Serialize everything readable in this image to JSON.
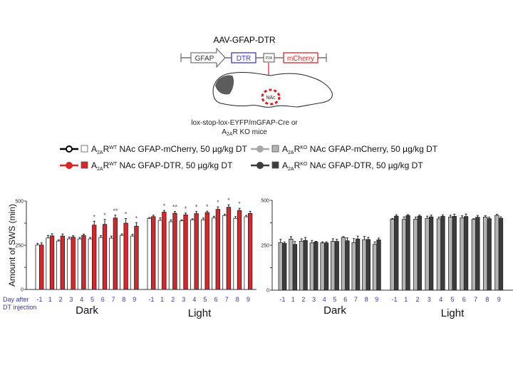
{
  "diagram": {
    "construct_title": "AAV-GFAP-DTR",
    "elements": [
      "GFAP",
      "DTR",
      "P2A",
      "mCherry"
    ],
    "region_label": "NAc",
    "mice_line1": "lox-stop-lox-EYFP/mGFAP-Cre  or",
    "mice_line2_a": "A",
    "mice_line2_sub": "2A",
    "mice_line2_b": "R KO mice",
    "colors": {
      "dtr": "#3b3bd0",
      "mcherry": "#e0262a",
      "injection": "#d62020"
    }
  },
  "legend": [
    {
      "a": "A",
      "sub": "2A",
      "r": "R",
      "sup": "WT",
      "text": " NAc GFAP-mCherry, 50 µg/kg DT",
      "color": "#ffffff",
      "line": "#000000",
      "marker": "open-circle"
    },
    {
      "a": "A",
      "sub": "2A",
      "r": "R",
      "sup": "WT",
      "text": " NAc GFAP-DTR, 50 µg/kg DT",
      "color": "#d8262a",
      "line": "#d8262a",
      "marker": "filled-circle"
    },
    {
      "a": "A",
      "sub": "2A",
      "r": "R",
      "sup": "KO",
      "text": " NAc GFAP-mCherry, 50 µg/kg DT",
      "color": "#b4b4b4",
      "line": "#a8a8a8",
      "marker": "filled-circle"
    },
    {
      "a": "A",
      "sub": "2A",
      "r": "R",
      "sup": "KO",
      "text": " NAc GFAP-DTR, 50 µg/kg DT",
      "color": "#3c3c3c",
      "line": "#3c3c3c",
      "marker": "filled-circle"
    }
  ],
  "chart_data": [
    {
      "type": "bar",
      "ylabel": "Amount of SWS (min)",
      "xlabel_line1": "Day after",
      "xlabel_line2": "DT injection",
      "ylim": [
        0,
        500
      ],
      "yticks": [
        "0",
        "250",
        "500"
      ],
      "categories": [
        "-1",
        "1",
        "2",
        "3",
        "4",
        "5",
        "6",
        "7",
        "8",
        "9"
      ],
      "groups": [
        {
          "name": "Dark",
          "series": [
            {
              "legend": 0,
              "color": "#ffffff",
              "values": [
                251,
                291,
                274,
                286,
                286,
                286,
                294,
                290,
                306,
                302
              ],
              "error": [
                10,
                14,
                6,
                10,
                8,
                8,
                10,
                12,
                8,
                10
              ]
            },
            {
              "legend": 1,
              "color": "#d8262a",
              "values": [
                251,
                303,
                302,
                296,
                305,
                364,
                368,
                404,
                375,
                358
              ],
              "error": [
                12,
                12,
                12,
                8,
                8,
                22,
                28,
                16,
                26,
                20
              ]
            }
          ],
          "significance": [
            "",
            "",
            "",
            "",
            "",
            "*",
            "*",
            "**",
            "*",
            "*"
          ]
        },
        {
          "name": "Light",
          "series": [
            {
              "legend": 0,
              "color": "#ffffff",
              "values": [
                402,
                391,
                383,
                388,
                394,
                394,
                404,
                418,
                402,
                411
              ],
              "error": [
                5,
                14,
                10,
                6,
                6,
                10,
                10,
                8,
                10,
                8
              ]
            },
            {
              "legend": 1,
              "color": "#d8262a",
              "values": [
                412,
                437,
                431,
                422,
                429,
                435,
                453,
                465,
                447,
                430
              ],
              "error": [
                8,
                10,
                10,
                10,
                12,
                8,
                14,
                14,
                12,
                12
              ]
            }
          ],
          "significance": [
            "",
            "*",
            "**",
            "*",
            "*",
            "*",
            "*",
            "*",
            "*",
            ""
          ]
        }
      ]
    },
    {
      "type": "bar",
      "ylim": [
        0,
        500
      ],
      "yticks": [
        "0",
        "250",
        "500"
      ],
      "categories": [
        "-1",
        "1",
        "2",
        "3",
        "4",
        "5",
        "6",
        "7",
        "8",
        "9"
      ],
      "groups": [
        {
          "name": "Dark",
          "series": [
            {
              "legend": 2,
              "color": "#b4b4b4",
              "values": [
                265,
                284,
                272,
                263,
                263,
                272,
                294,
                265,
                281,
                255
              ],
              "error": [
                18,
                14,
                14,
                14,
                6,
                14,
                4,
                22,
                18,
                14
              ]
            },
            {
              "legend": 3,
              "color": "#3c3c3c",
              "values": [
                260,
                255,
                277,
                268,
                263,
                271,
                275,
                285,
                282,
                280
              ],
              "error": [
                8,
                16,
                16,
                4,
                6,
                12,
                16,
                16,
                12,
                10
              ]
            }
          ],
          "significance": [
            "",
            "",
            "",
            "",
            "",
            "",
            "",
            "",
            "",
            ""
          ]
        },
        {
          "name": "Light",
          "series": [
            {
              "legend": 2,
              "color": "#b4b4b4",
              "values": [
                395,
                394,
                395,
                400,
                397,
                407,
                402,
                394,
                407,
                416
              ],
              "error": [
                4,
                14,
                12,
                12,
                10,
                10,
                12,
                4,
                8,
                6
              ]
            },
            {
              "legend": 3,
              "color": "#3c3c3c",
              "values": [
                412,
                415,
                412,
                408,
                411,
                411,
                410,
                406,
                398,
                400
              ],
              "error": [
                8,
                6,
                6,
                10,
                8,
                12,
                14,
                10,
                8,
                8
              ]
            }
          ],
          "significance": [
            "",
            "",
            "",
            "",
            "",
            "",
            "",
            "",
            "",
            ""
          ]
        }
      ]
    }
  ]
}
